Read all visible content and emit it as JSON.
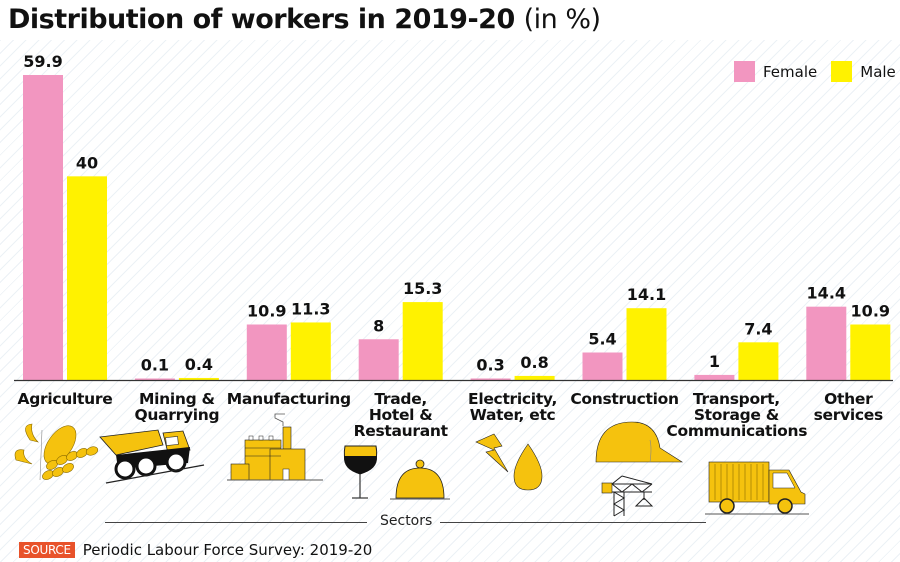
{
  "colors": {
    "female": "#f296c0",
    "male": "#fff200",
    "icon_yellow": "#f5c20e",
    "axis": "#333333",
    "source_badge": "#e8522a"
  },
  "header": {
    "title": "Distribution of workers in 2019-20",
    "unit": "(in %)"
  },
  "legend": {
    "female_label": "Female",
    "male_label": "Male"
  },
  "footer": {
    "axis_label": "Sectors",
    "source_badge": "SOURCE",
    "source_text": "Periodic Labour Force Survey: 2019-20"
  },
  "chart_data": {
    "type": "bar",
    "title": "Distribution of workers in 2019-20 (in %)",
    "xlabel": "Sectors",
    "ylabel": "",
    "ylim": [
      0,
      60
    ],
    "grid": false,
    "legend_position": "top-right",
    "categories": [
      "Agriculture",
      "Mining & Quarrying",
      "Manufacturing",
      "Trade, Hotel & Restaurant",
      "Electricity, Water, etc",
      "Construction",
      "Transport, Storage & Communications",
      "Other services"
    ],
    "category_lines": [
      [
        "Agriculture"
      ],
      [
        "Mining &",
        "Quarrying"
      ],
      [
        "Manufacturing"
      ],
      [
        "Trade,",
        "Hotel &",
        "Restaurant"
      ],
      [
        "Electricity,",
        "Water, etc"
      ],
      [
        "Construction"
      ],
      [
        "Transport,",
        "Storage &",
        "Communications"
      ],
      [
        "Other",
        "services"
      ]
    ],
    "icons": [
      "wheat-corn-icon",
      "dump-truck-icon",
      "factory-icon",
      "wine-glass-cloche-icon",
      "lightning-water-drop-icon",
      "hardhat-crane-icon",
      "delivery-truck-icon",
      ""
    ],
    "series": [
      {
        "name": "Female",
        "values": [
          59.9,
          0.1,
          10.9,
          8,
          0.3,
          5.4,
          1,
          14.4
        ],
        "labels": [
          "59.9",
          "0.1",
          "10.9",
          "8",
          "0.3",
          "5.4",
          "1",
          "14.4"
        ]
      },
      {
        "name": "Male",
        "values": [
          40,
          0.4,
          11.3,
          15.3,
          0.8,
          14.1,
          7.4,
          10.9
        ],
        "labels": [
          "40",
          "0.4",
          "11.3",
          "15.3",
          "0.8",
          "14.1",
          "7.4",
          "10.9"
        ]
      }
    ]
  }
}
